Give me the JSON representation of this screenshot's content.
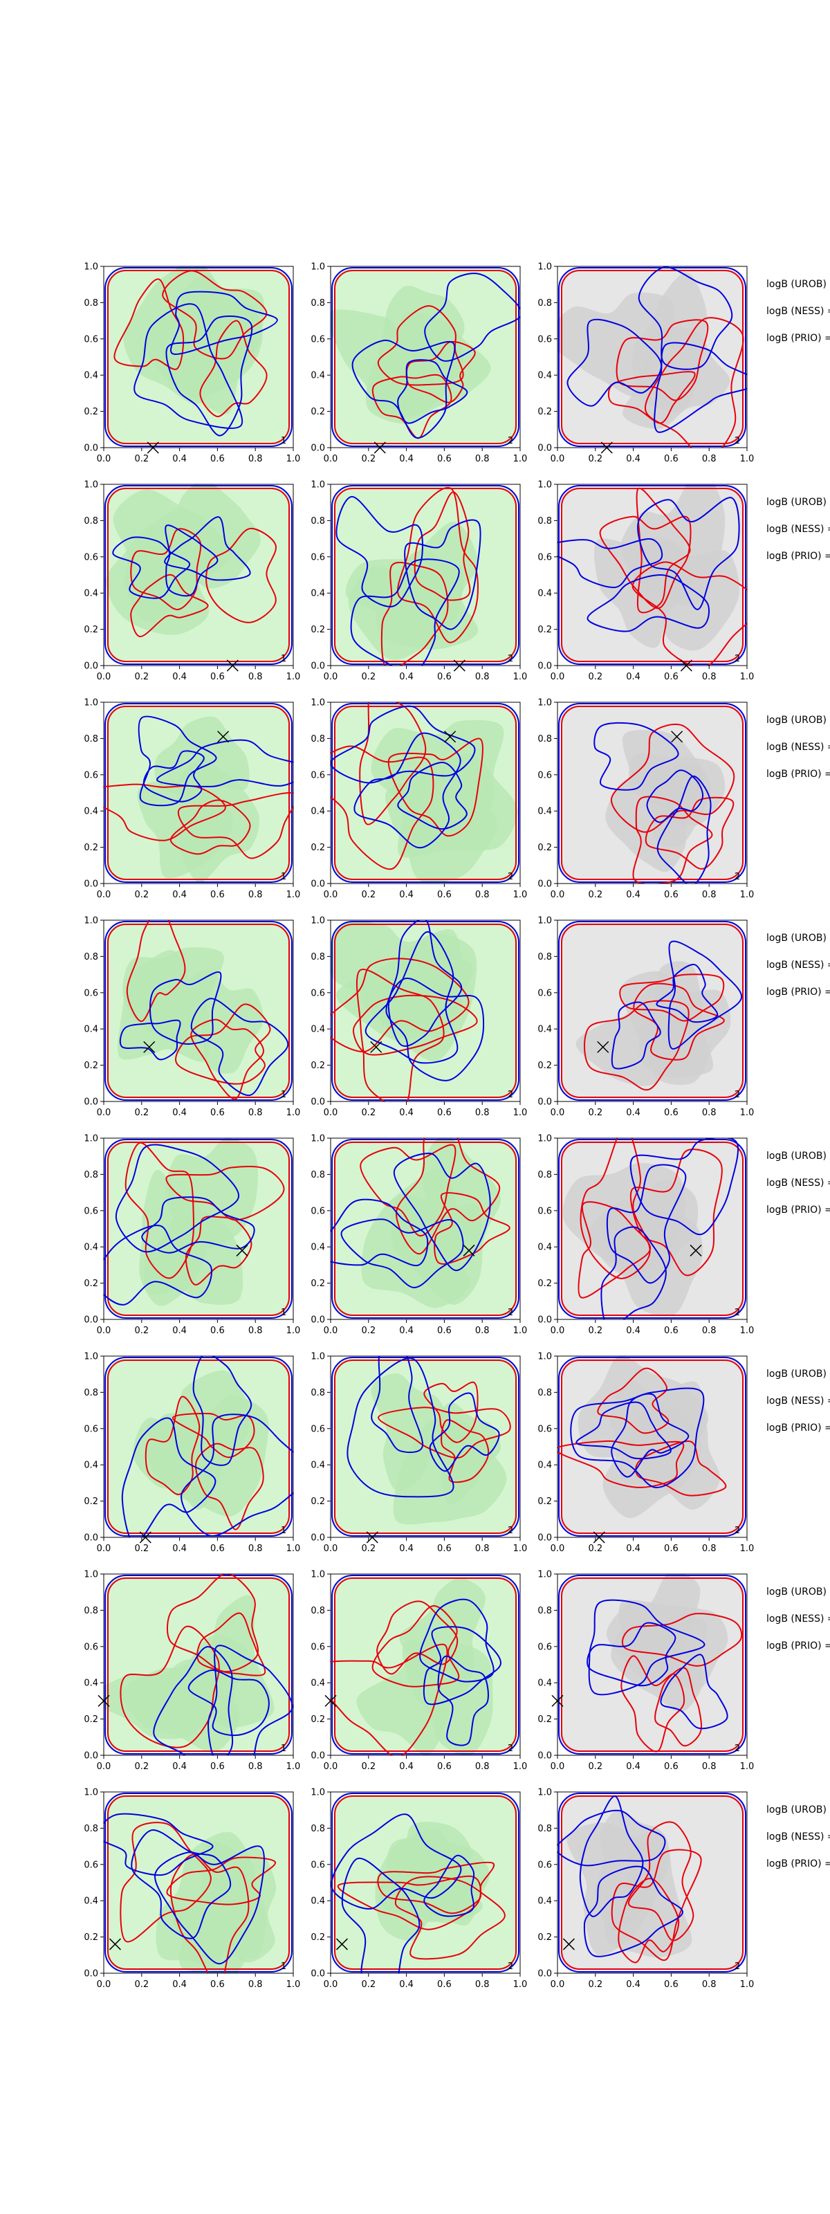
{
  "chart_data": {
    "type": "contour",
    "panel_grid": {
      "rows": 8,
      "cols": 3
    },
    "xlim": [
      0,
      1
    ],
    "ylim": [
      0,
      1
    ],
    "x_ticks": [
      "0.0",
      "0.2",
      "0.4",
      "0.6",
      "0.8",
      "1.0"
    ],
    "y_ticks": [
      "0.0",
      "0.2",
      "0.4",
      "0.6",
      "0.8",
      "1.0"
    ],
    "grid": false,
    "legend": "none",
    "colors": {
      "red_contour": "#e8000b",
      "blue_contour": "#0000e0",
      "green_fill_light": "#d5f5d0",
      "green_fill_mid": "#b9e8b4",
      "gray_fill_light": "#e6e6e6",
      "gray_fill_mid": "#d0d0d0",
      "marker": "#000000"
    },
    "column_backgrounds": [
      "green",
      "green",
      "gray"
    ],
    "panel_numbers": [
      "1",
      "2",
      "2"
    ],
    "markers": [
      {
        "row": 1,
        "x": 0.26,
        "y": 0.0
      },
      {
        "row": 2,
        "x": 0.68,
        "y": 0.0
      },
      {
        "row": 3,
        "x": 0.63,
        "y": 0.81
      },
      {
        "row": 4,
        "x": 0.24,
        "y": 0.3
      },
      {
        "row": 5,
        "x": 0.73,
        "y": 0.38
      },
      {
        "row": 6,
        "x": 0.22,
        "y": 0.0
      },
      {
        "row": 7,
        "x": 0.0,
        "y": 0.3
      },
      {
        "row": 8,
        "x": 0.06,
        "y": 0.16
      }
    ],
    "annotations": [
      "logB (UROB) =",
      "logB (NESS) =",
      "logB (PRIO) ="
    ]
  }
}
